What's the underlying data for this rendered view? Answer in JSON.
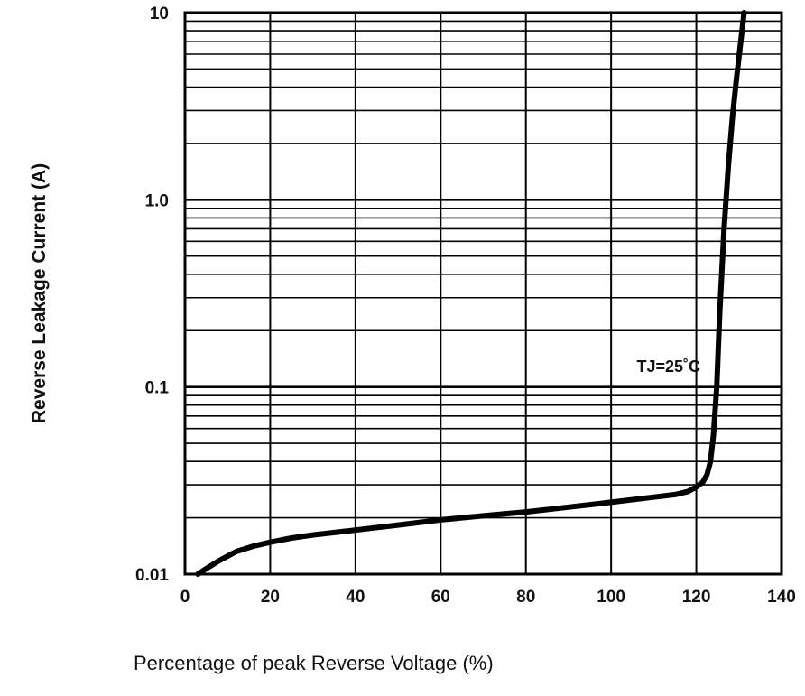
{
  "chart_data": {
    "type": "line",
    "title": "",
    "xlabel": "Percentage of peak Reverse Voltage (%)",
    "ylabel": "Reverse Leakage Current (A)",
    "xlim": [
      0,
      140
    ],
    "ylim": [
      0.01,
      10
    ],
    "yscale": "log",
    "grid": true,
    "x_ticks": [
      0,
      20,
      40,
      60,
      80,
      100,
      120,
      140
    ],
    "x_tick_labels": [
      "0",
      "20",
      "40",
      "60",
      "80",
      "100",
      "120",
      "140"
    ],
    "y_ticks": [
      0.01,
      0.1,
      1.0,
      10
    ],
    "y_tick_labels": [
      "0.01",
      "0.1",
      "1.0",
      "10"
    ],
    "annotation": {
      "text": "TJ=25˚C",
      "x": 106,
      "y": 0.12
    },
    "series": [
      {
        "color": "#000000",
        "x": [
          3,
          5,
          8,
          12,
          16,
          20,
          25,
          30,
          40,
          50,
          60,
          70,
          80,
          90,
          100,
          110,
          115,
          118,
          120,
          121.5,
          122.5,
          123.3,
          124,
          124.8,
          125.5,
          126.5,
          127.5,
          128.5,
          129.5,
          130.5,
          131.2
        ],
        "y": [
          0.01,
          0.0107,
          0.0118,
          0.0132,
          0.0141,
          0.0148,
          0.0156,
          0.0162,
          0.0172,
          0.0183,
          0.0195,
          0.0205,
          0.0215,
          0.0228,
          0.0242,
          0.0258,
          0.0266,
          0.0276,
          0.0292,
          0.031,
          0.034,
          0.04,
          0.055,
          0.1,
          0.25,
          0.7,
          1.5,
          2.8,
          4.6,
          7.2,
          10
        ]
      }
    ]
  }
}
